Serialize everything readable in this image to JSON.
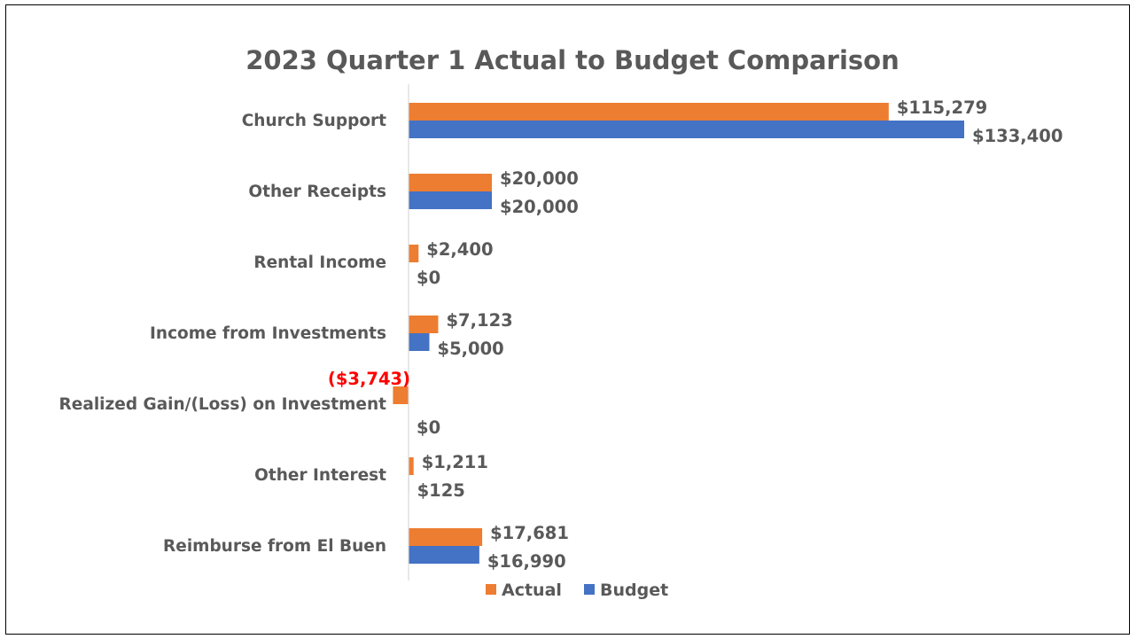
{
  "chart_data": {
    "type": "bar",
    "orientation": "horizontal",
    "title": "2023 Quarter 1 Actual to Budget Comparison",
    "categories": [
      "Church Support",
      "Other Receipts",
      "Rental Income",
      "Income from Investments",
      "Realized Gain/(Loss) on Investment",
      "Other Interest",
      "Reimburse from El Buen"
    ],
    "series": [
      {
        "name": "Actual",
        "color": "#ED7D31",
        "values": [
          115279,
          20000,
          2400,
          7123,
          -3743,
          1211,
          17681
        ],
        "labels": [
          "$115,279",
          "$20,000",
          "$2,400",
          "$7,123",
          "($3,743)",
          "$1,211",
          "$17,681"
        ]
      },
      {
        "name": "Budget",
        "color": "#4472C4",
        "values": [
          133400,
          20000,
          0,
          5000,
          0,
          125,
          16990
        ],
        "labels": [
          "$133,400",
          "$20,000",
          "$0",
          "$5,000",
          "$0",
          "$125",
          "$16,990"
        ]
      }
    ],
    "negative_label_color": "#FF0000",
    "label_color": "#595959",
    "xlim": [
      -3743,
      133400
    ],
    "grid": false,
    "legend_position": "bottom"
  }
}
